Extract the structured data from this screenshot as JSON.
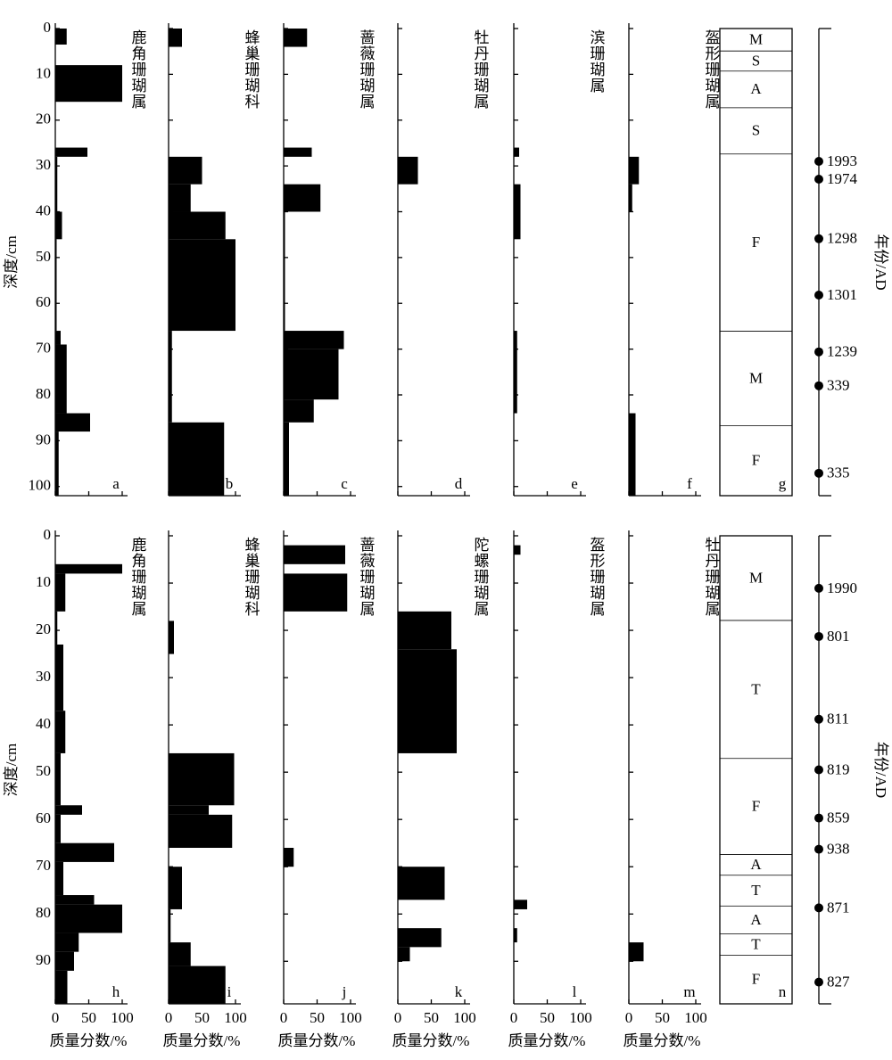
{
  "chart_data": [
    {
      "type": "profile",
      "y_label": "深度/cm",
      "ylim": [
        0,
        102
      ],
      "yticks": [
        0,
        10,
        20,
        30,
        40,
        50,
        60,
        70,
        80,
        90,
        100
      ],
      "xtick_labels": false,
      "panels": [
        {
          "title": "鹿角珊瑚属",
          "letter": "a",
          "xlim": [
            0,
            100
          ],
          "xticks": [
            0,
            50,
            100
          ],
          "bins": [
            0,
            3.5,
            8,
            16,
            26,
            28,
            40,
            46,
            66,
            69,
            84,
            88,
            102
          ],
          "values": [
            17,
            0,
            100,
            0,
            48,
            3,
            10,
            2,
            8,
            17,
            52,
            5
          ]
        },
        {
          "title": "蜂巢珊瑚科",
          "letter": "b",
          "xlim": [
            0,
            100
          ],
          "xticks": [
            0,
            50,
            100
          ],
          "bins": [
            0,
            4,
            28,
            34,
            40,
            46,
            66,
            86,
            102
          ],
          "values": [
            20,
            0,
            50,
            33,
            85,
            100,
            5,
            83
          ]
        },
        {
          "title": "蔷薇珊瑚属",
          "letter": "c",
          "xlim": [
            0,
            100
          ],
          "xticks": [
            0,
            50,
            100
          ],
          "bins": [
            0,
            4,
            26,
            28,
            34,
            40,
            66,
            70,
            81,
            86,
            102
          ],
          "values": [
            35,
            0,
            42,
            0,
            55,
            2,
            90,
            82,
            45,
            8
          ]
        },
        {
          "title": "牡丹珊瑚属",
          "letter": "d",
          "xlim": [
            0,
            100
          ],
          "xticks": [
            0,
            50,
            100
          ],
          "bins": [
            0,
            28,
            34,
            102
          ],
          "values": [
            0,
            30,
            0
          ]
        },
        {
          "title": "滨珊瑚属",
          "letter": "e",
          "xlim": [
            0,
            100
          ],
          "xticks": [
            0,
            50,
            100
          ],
          "bins": [
            0,
            26,
            28,
            34,
            46,
            66,
            84,
            102
          ],
          "values": [
            0,
            8,
            0,
            10,
            0,
            5,
            0
          ]
        },
        {
          "title": "盔形珊瑚属",
          "letter": "f",
          "xlim": [
            0,
            100
          ],
          "xticks": [
            0,
            50,
            100
          ],
          "bins": [
            0,
            28,
            34,
            40,
            84,
            102
          ],
          "values": [
            0,
            15,
            5,
            0,
            10
          ]
        }
      ],
      "facies": {
        "letter": "g",
        "bounds": [
          0,
          4.9,
          9.3,
          17.3,
          27.4,
          66.1,
          86.7,
          102
        ],
        "labels": [
          "M",
          "S",
          "A",
          "S",
          "F",
          "M",
          "F"
        ]
      },
      "ages": {
        "label": "年份/AD",
        "depths": [
          29,
          32.9,
          45.9,
          58.2,
          70.6,
          78,
          97.1
        ],
        "years": [
          1993,
          1974,
          1298,
          1301,
          1239,
          339,
          335
        ]
      }
    },
    {
      "type": "profile",
      "y_label": "深度/cm",
      "x_label": "质量分数/%",
      "ylim": [
        0,
        99
      ],
      "yticks": [
        0,
        10,
        20,
        30,
        40,
        50,
        60,
        70,
        80,
        90
      ],
      "xtick_labels": true,
      "panels": [
        {
          "title": "鹿角珊瑚属",
          "letter": "h",
          "xlim": [
            0,
            100
          ],
          "xticks": [
            0,
            50,
            100
          ],
          "bins": [
            0,
            6,
            8,
            16,
            23,
            37,
            46,
            57,
            59,
            65,
            69,
            76,
            78,
            84,
            88,
            92,
            99
          ],
          "values": [
            0,
            100,
            15,
            3,
            12,
            15,
            8,
            40,
            8,
            88,
            12,
            58,
            100,
            35,
            28,
            18
          ]
        },
        {
          "title": "蜂巢珊瑚科",
          "letter": "i",
          "xlim": [
            0,
            100
          ],
          "xticks": [
            0,
            50,
            100
          ],
          "bins": [
            0,
            18,
            25,
            46,
            57,
            59,
            66,
            70,
            79,
            86,
            91,
            99
          ],
          "values": [
            0,
            8,
            0,
            98,
            60,
            95,
            0,
            20,
            3,
            33,
            85
          ]
        },
        {
          "title": "蔷薇珊瑚属",
          "letter": "j",
          "xlim": [
            0,
            100
          ],
          "xticks": [
            0,
            50,
            100
          ],
          "bins": [
            0,
            2,
            6,
            8,
            16,
            66,
            70,
            99
          ],
          "values": [
            0,
            92,
            0,
            95,
            0,
            15,
            0
          ]
        },
        {
          "title": "陀螺珊瑚属",
          "letter": "k",
          "xlim": [
            0,
            100
          ],
          "xticks": [
            0,
            50,
            100
          ],
          "bins": [
            0,
            16,
            24,
            46,
            70,
            77,
            83,
            87,
            90,
            99
          ],
          "values": [
            0,
            80,
            88,
            0,
            70,
            0,
            65,
            18,
            0
          ]
        },
        {
          "title": "盔形珊瑚属",
          "letter": "l",
          "xlim": [
            0,
            100
          ],
          "xticks": [
            0,
            50,
            100
          ],
          "bins": [
            0,
            2,
            4,
            77,
            79,
            83,
            86,
            99
          ],
          "values": [
            0,
            10,
            1,
            20,
            0,
            5,
            0
          ]
        },
        {
          "title": "牡丹珊瑚属",
          "letter": "m",
          "xlim": [
            0,
            100
          ],
          "xticks": [
            0,
            50,
            100
          ],
          "bins": [
            0,
            86,
            90,
            99
          ],
          "values": [
            0,
            22,
            0
          ]
        }
      ],
      "facies": {
        "letter": "n",
        "bounds": [
          0,
          17.9,
          47.1,
          67.4,
          71.8,
          78.3,
          84.2,
          88.7,
          99
        ],
        "labels": [
          "M",
          "T",
          "F",
          "A",
          "T",
          "A",
          "T",
          "F"
        ]
      },
      "ages": {
        "label": "年份/AD",
        "depths": [
          11.1,
          21.3,
          38.8,
          49.5,
          59.7,
          66.3,
          78.7,
          94.4
        ],
        "years": [
          1990,
          801,
          811,
          819,
          859,
          938,
          871,
          827
        ]
      }
    }
  ]
}
